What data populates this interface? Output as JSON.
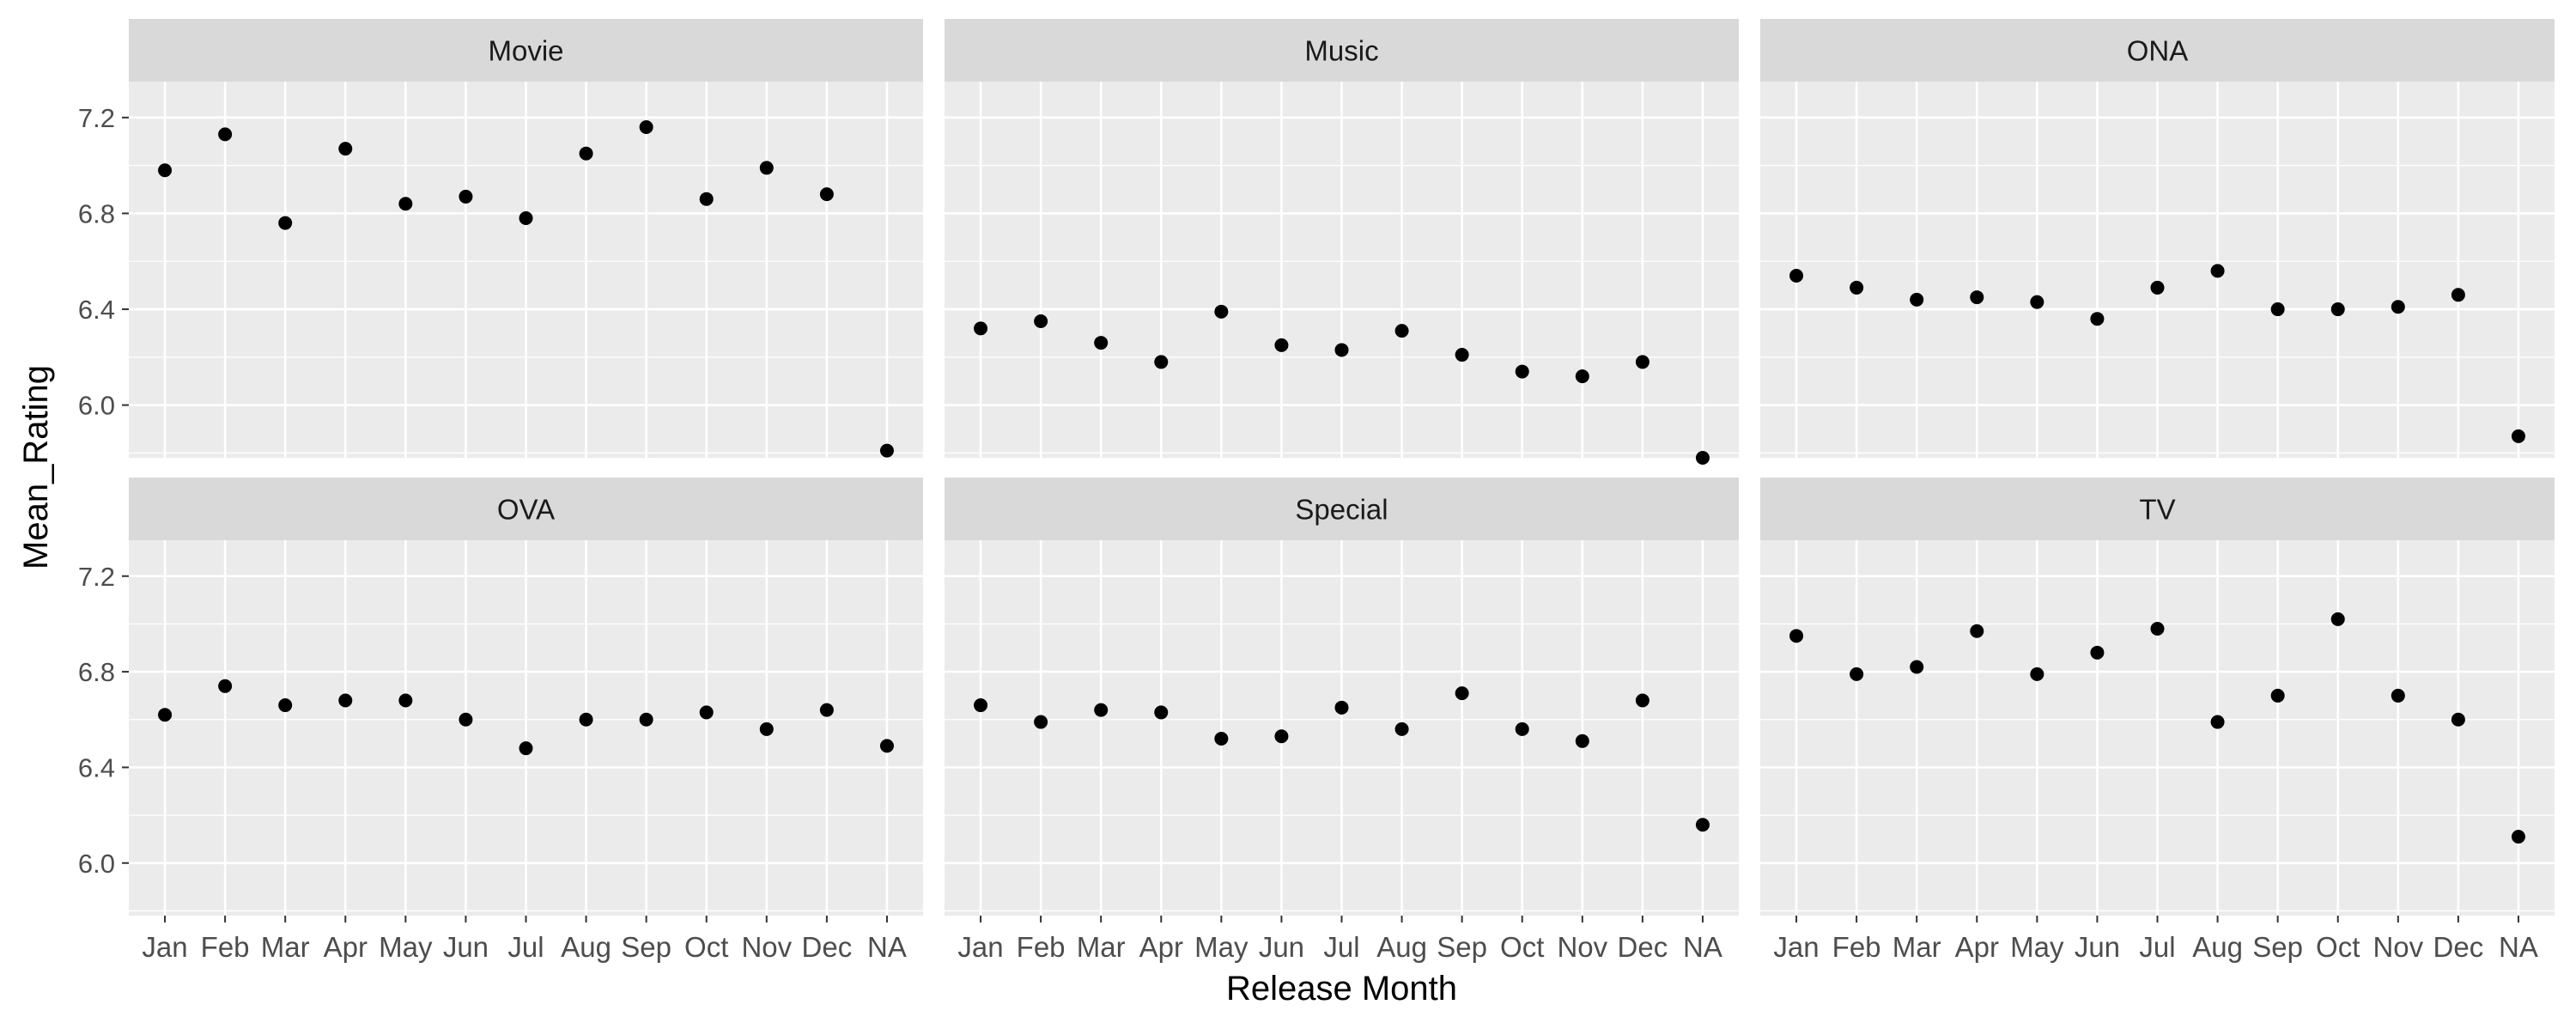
{
  "chart_data": {
    "type": "scatter",
    "facet_layout": "2x3",
    "xlabel": "Release Month",
    "ylabel": "Mean_Rating",
    "categories": [
      "Jan",
      "Feb",
      "Mar",
      "Apr",
      "May",
      "Jun",
      "Jul",
      "Aug",
      "Sep",
      "Oct",
      "Nov",
      "Dec",
      "NA"
    ],
    "ylim": [
      5.78,
      7.35
    ],
    "yticks": [
      6.0,
      6.4,
      6.8,
      7.2
    ],
    "grid": true,
    "point_color": "#000000",
    "panel_background": "#ebebeb",
    "strip_background": "#d9d9d9",
    "panels": [
      {
        "title": "Movie",
        "values": [
          6.98,
          7.13,
          6.76,
          7.07,
          6.84,
          6.87,
          6.78,
          7.05,
          7.16,
          6.86,
          6.99,
          6.88,
          5.81
        ]
      },
      {
        "title": "Music",
        "values": [
          6.32,
          6.35,
          6.26,
          6.18,
          6.39,
          6.25,
          6.23,
          6.31,
          6.21,
          6.14,
          6.12,
          6.18,
          5.78
        ]
      },
      {
        "title": "ONA",
        "values": [
          6.54,
          6.49,
          6.44,
          6.45,
          6.43,
          6.36,
          6.49,
          6.56,
          6.4,
          6.4,
          6.41,
          6.46,
          5.87
        ]
      },
      {
        "title": "OVA",
        "values": [
          6.62,
          6.74,
          6.66,
          6.68,
          6.68,
          6.6,
          6.48,
          6.6,
          6.6,
          6.63,
          6.56,
          6.64,
          6.49
        ]
      },
      {
        "title": "Special",
        "values": [
          6.66,
          6.59,
          6.64,
          6.63,
          6.52,
          6.53,
          6.65,
          6.56,
          6.71,
          6.56,
          6.51,
          6.68,
          6.16
        ]
      },
      {
        "title": "TV",
        "values": [
          6.95,
          6.79,
          6.82,
          6.97,
          6.79,
          6.88,
          6.98,
          6.59,
          6.7,
          7.02,
          6.7,
          6.6,
          6.11
        ]
      }
    ]
  }
}
